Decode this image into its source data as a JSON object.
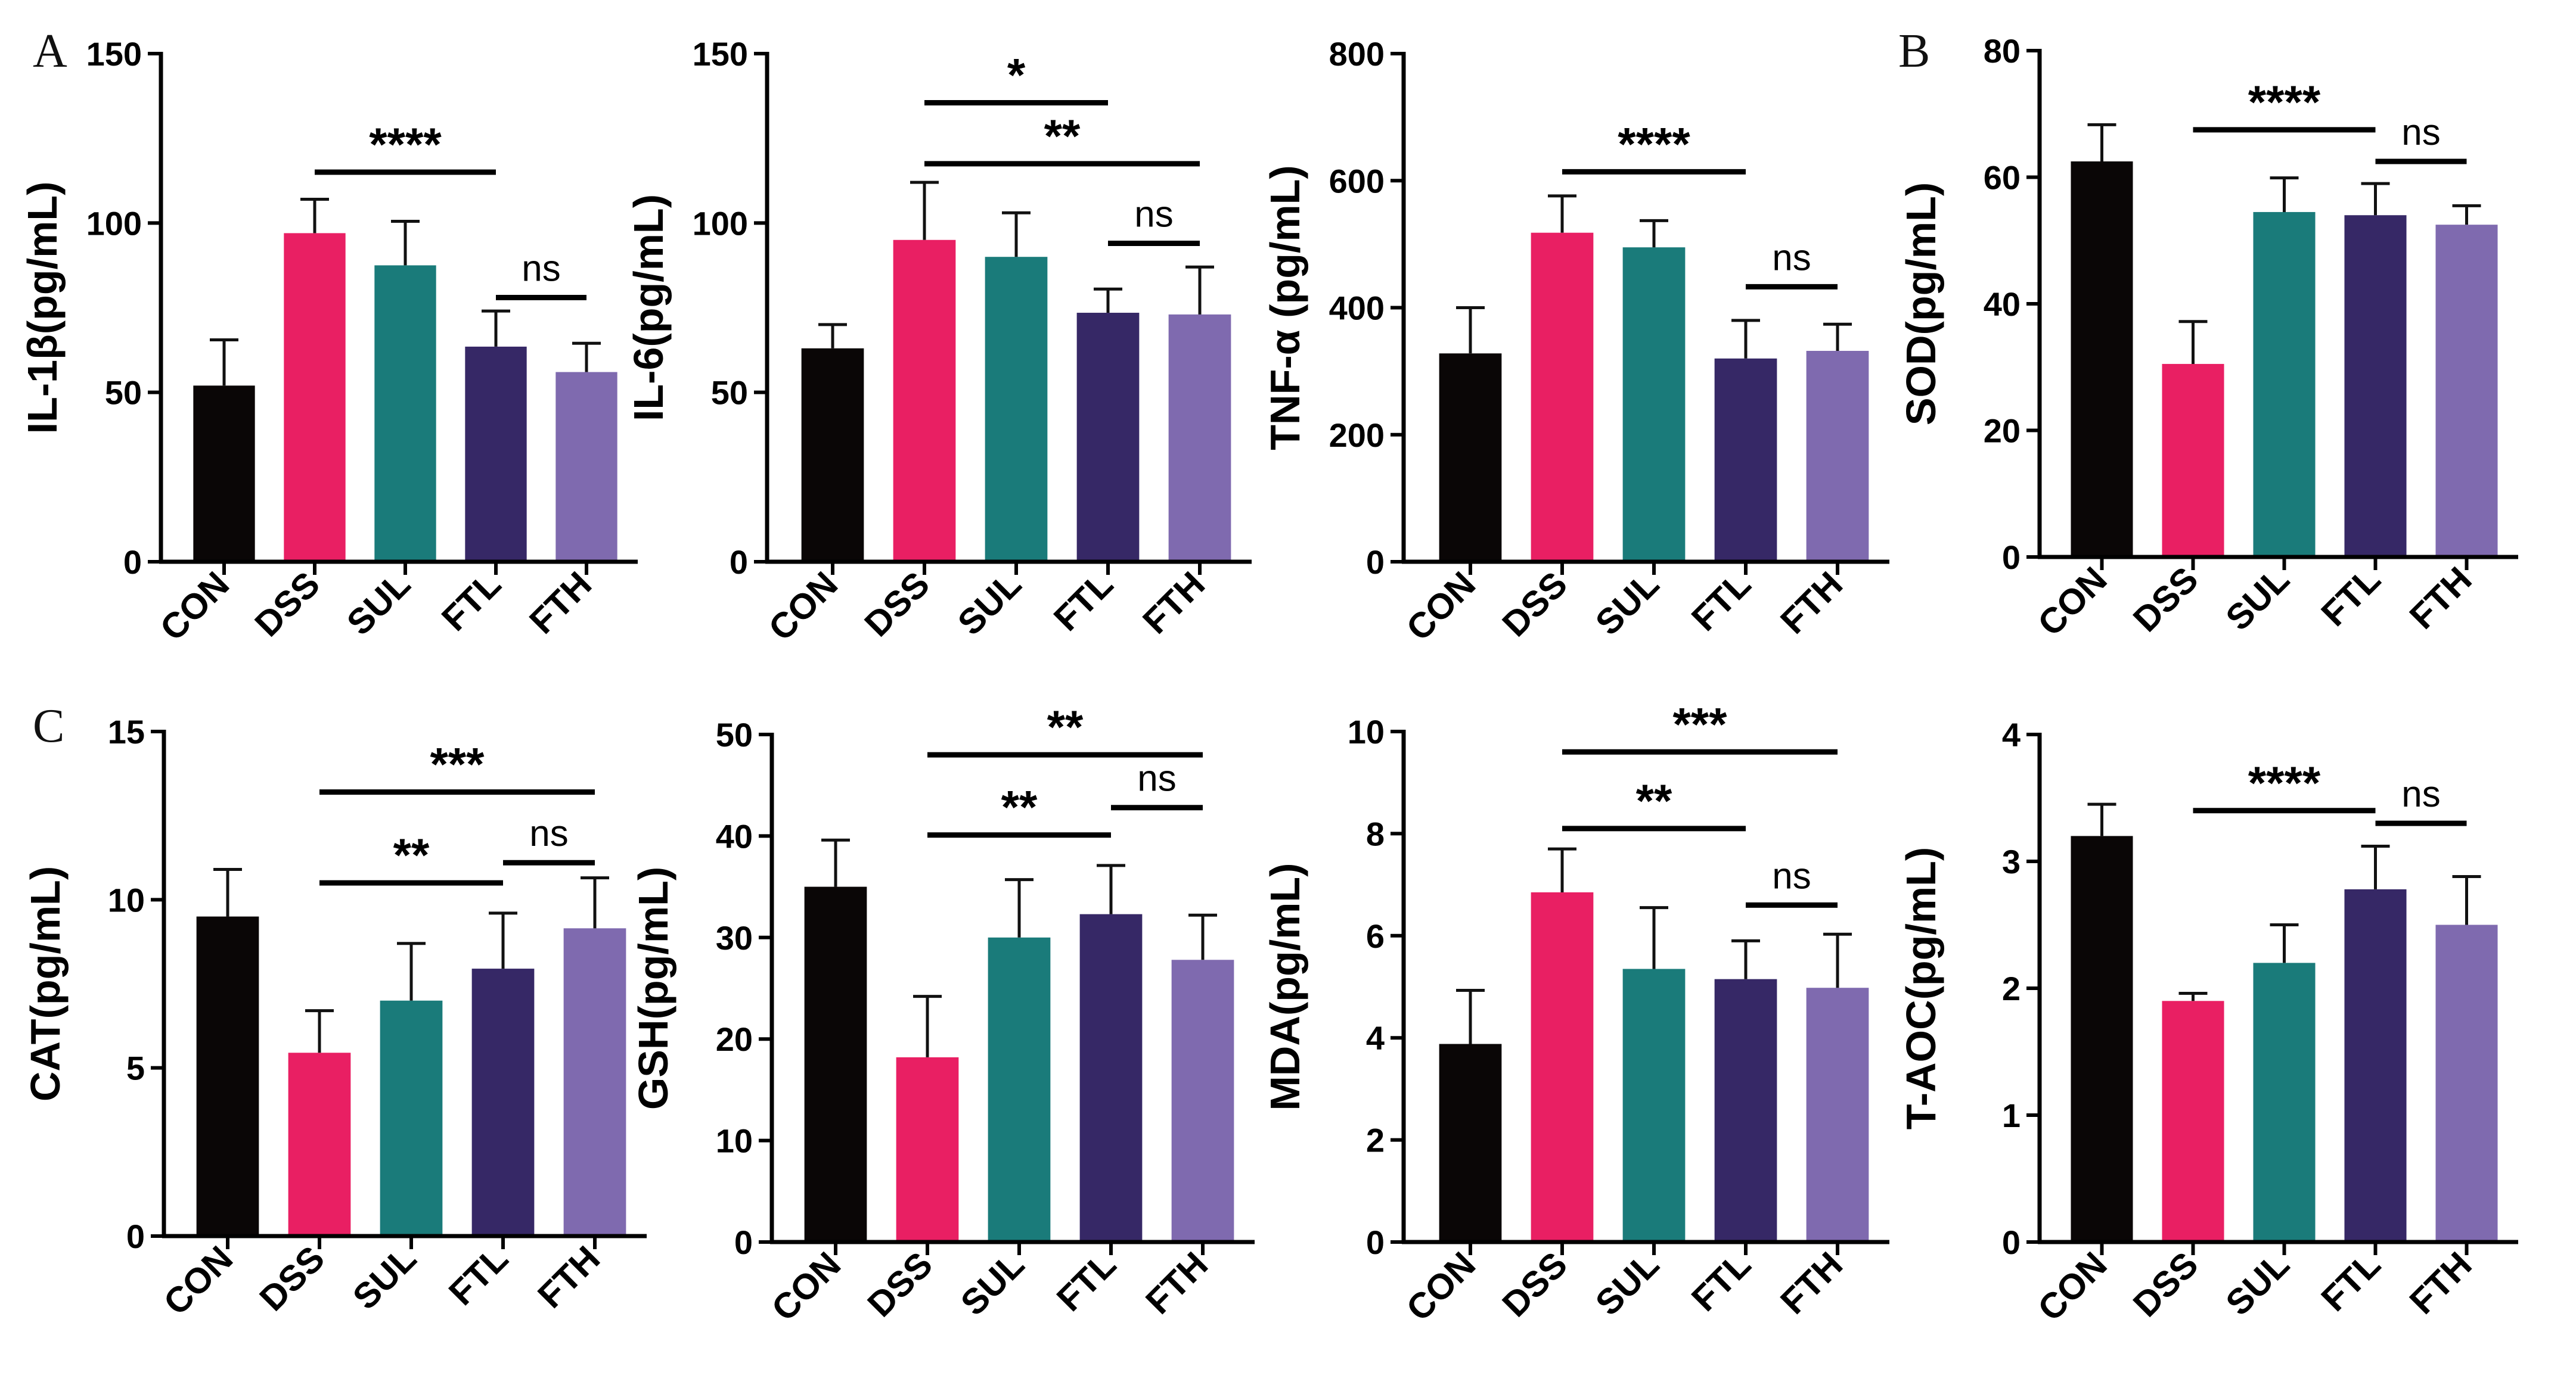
{
  "panel_letters": [
    "A",
    "B",
    "C"
  ],
  "chart_data": [
    {
      "type": "bar",
      "panel_letter": "A",
      "ylabel": "IL-1β(pg/mL)",
      "categories": [
        "CON",
        "DSS",
        "SUL",
        "FTL",
        "FTH"
      ],
      "values": [
        52,
        97,
        87.5,
        63.5,
        56
      ],
      "errors": [
        13.5,
        10,
        13,
        10.5,
        8.5
      ],
      "colors": [
        "#0a0606",
        "#e91f63",
        "#1a7b7a",
        "#362866",
        "#7f6aaf"
      ],
      "ylim": [
        0,
        150
      ],
      "yticks": [
        0,
        50,
        100,
        150
      ],
      "sig": [
        {
          "from": "DSS",
          "to": "FTL",
          "y": 115,
          "label": "****"
        },
        {
          "from": "FTL",
          "to": "FTH",
          "y": 78,
          "label": "ns"
        }
      ]
    },
    {
      "type": "bar",
      "ylabel": "IL-6(pg/mL)",
      "categories": [
        "CON",
        "DSS",
        "SUL",
        "FTL",
        "FTH"
      ],
      "values": [
        63,
        95,
        90,
        73.5,
        73
      ],
      "errors": [
        7,
        17,
        13,
        7,
        14
      ],
      "colors": [
        "#0a0606",
        "#e91f63",
        "#1a7b7a",
        "#362866",
        "#7f6aaf"
      ],
      "ylim": [
        0,
        150
      ],
      "yticks": [
        0,
        50,
        100,
        150
      ],
      "sig": [
        {
          "from": "DSS",
          "to": "FTL",
          "y": 135.5,
          "label": "*"
        },
        {
          "from": "DSS",
          "to": "FTH",
          "y": 117.5,
          "label": "**"
        },
        {
          "from": "FTL",
          "to": "FTH",
          "y": 94,
          "label": "ns"
        }
      ]
    },
    {
      "type": "bar",
      "ylabel": "TNF-α (pg/mL)",
      "categories": [
        "CON",
        "DSS",
        "SUL",
        "FTL",
        "FTH"
      ],
      "values": [
        328,
        518,
        495,
        320,
        332
      ],
      "errors": [
        72,
        58,
        42,
        60,
        42
      ],
      "colors": [
        "#0a0606",
        "#e91f63",
        "#1a7b7a",
        "#362866",
        "#7f6aaf"
      ],
      "ylim": [
        0,
        800
      ],
      "yticks": [
        0,
        200,
        400,
        600,
        800
      ],
      "sig": [
        {
          "from": "DSS",
          "to": "FTL",
          "y": 614,
          "label": "****"
        },
        {
          "from": "FTL",
          "to": "FTH",
          "y": 433,
          "label": "ns"
        }
      ]
    },
    {
      "type": "bar",
      "panel_letter": "B",
      "ylabel": "SOD(pg/mL)",
      "categories": [
        "CON",
        "DSS",
        "SUL",
        "FTL",
        "FTH"
      ],
      "values": [
        62.5,
        30.5,
        54.5,
        54,
        52.5
      ],
      "errors": [
        5.8,
        6.7,
        5.4,
        5,
        3
      ],
      "colors": [
        "#0a0606",
        "#e91f63",
        "#1a7b7a",
        "#362866",
        "#7f6aaf"
      ],
      "ylim": [
        0,
        80
      ],
      "yticks": [
        0,
        20,
        40,
        60,
        80
      ],
      "sig": [
        {
          "from": "DSS",
          "to": "FTL",
          "y": 67.5,
          "label": "****"
        },
        {
          "from": "FTL",
          "to": "FTH",
          "y": 62.5,
          "label": "ns"
        }
      ]
    },
    {
      "type": "bar",
      "panel_letter": "C",
      "ylabel": "CAT(pg/mL)",
      "categories": [
        "CON",
        "DSS",
        "SUL",
        "FTL",
        "FTH"
      ],
      "values": [
        9.5,
        5.45,
        7,
        7.95,
        9.15
      ],
      "errors": [
        1.4,
        1.25,
        1.7,
        1.65,
        1.5
      ],
      "colors": [
        "#0a0606",
        "#e91f63",
        "#1a7b7a",
        "#362866",
        "#7f6aaf"
      ],
      "ylim": [
        0,
        15
      ],
      "yticks": [
        0,
        5,
        10,
        15
      ],
      "sig": [
        {
          "from": "DSS",
          "to": "FTH",
          "y": 13.2,
          "label": "***"
        },
        {
          "from": "DSS",
          "to": "FTL",
          "y": 10.5,
          "label": "**"
        },
        {
          "from": "FTL",
          "to": "FTH",
          "y": 11.1,
          "label": "ns"
        }
      ]
    },
    {
      "type": "bar",
      "ylabel": "GSH(pg/mL)",
      "categories": [
        "CON",
        "DSS",
        "SUL",
        "FTL",
        "FTH"
      ],
      "values": [
        35,
        18.2,
        30,
        32.3,
        27.8
      ],
      "errors": [
        4.6,
        6,
        5.7,
        4.8,
        4.4
      ],
      "colors": [
        "#0a0606",
        "#e91f63",
        "#1a7b7a",
        "#362866",
        "#7f6aaf"
      ],
      "ylim": [
        0,
        50
      ],
      "yticks": [
        0,
        10,
        20,
        30,
        40,
        50
      ],
      "sig": [
        {
          "from": "DSS",
          "to": "FTH",
          "y": 48,
          "label": "**"
        },
        {
          "from": "DSS",
          "to": "FTL",
          "y": 40.1,
          "label": "**"
        },
        {
          "from": "FTL",
          "to": "FTH",
          "y": 42.8,
          "label": "ns"
        }
      ]
    },
    {
      "type": "bar",
      "ylabel": "MDA(pg/mL)",
      "categories": [
        "CON",
        "DSS",
        "SUL",
        "FTL",
        "FTH"
      ],
      "values": [
        3.88,
        6.85,
        5.35,
        5.15,
        4.98
      ],
      "errors": [
        1.05,
        0.85,
        1.2,
        0.75,
        1.05
      ],
      "colors": [
        "#0a0606",
        "#e91f63",
        "#1a7b7a",
        "#362866",
        "#7f6aaf"
      ],
      "ylim": [
        0,
        10
      ],
      "yticks": [
        0,
        2,
        4,
        6,
        8,
        10
      ],
      "sig": [
        {
          "from": "DSS",
          "to": "FTH",
          "y": 9.6,
          "label": "***"
        },
        {
          "from": "DSS",
          "to": "FTL",
          "y": 8.1,
          "label": "**"
        },
        {
          "from": "FTL",
          "to": "FTH",
          "y": 6.6,
          "label": "ns"
        }
      ]
    },
    {
      "type": "bar",
      "ylabel": "T-AOC(pg/mL)",
      "categories": [
        "CON",
        "DSS",
        "SUL",
        "FTL",
        "FTH"
      ],
      "values": [
        3.2,
        1.9,
        2.2,
        2.78,
        2.5
      ],
      "errors": [
        0.25,
        0.06,
        0.3,
        0.34,
        0.38
      ],
      "colors": [
        "#0a0606",
        "#e91f63",
        "#1a7b7a",
        "#362866",
        "#7f6aaf"
      ],
      "ylim": [
        0,
        4
      ],
      "yticks": [
        0,
        1,
        2,
        3,
        4
      ],
      "sig": [
        {
          "from": "DSS",
          "to": "FTL",
          "y": 3.4,
          "label": "****"
        },
        {
          "from": "FTL",
          "to": "FTH",
          "y": 3.3,
          "label": "ns"
        }
      ]
    }
  ]
}
